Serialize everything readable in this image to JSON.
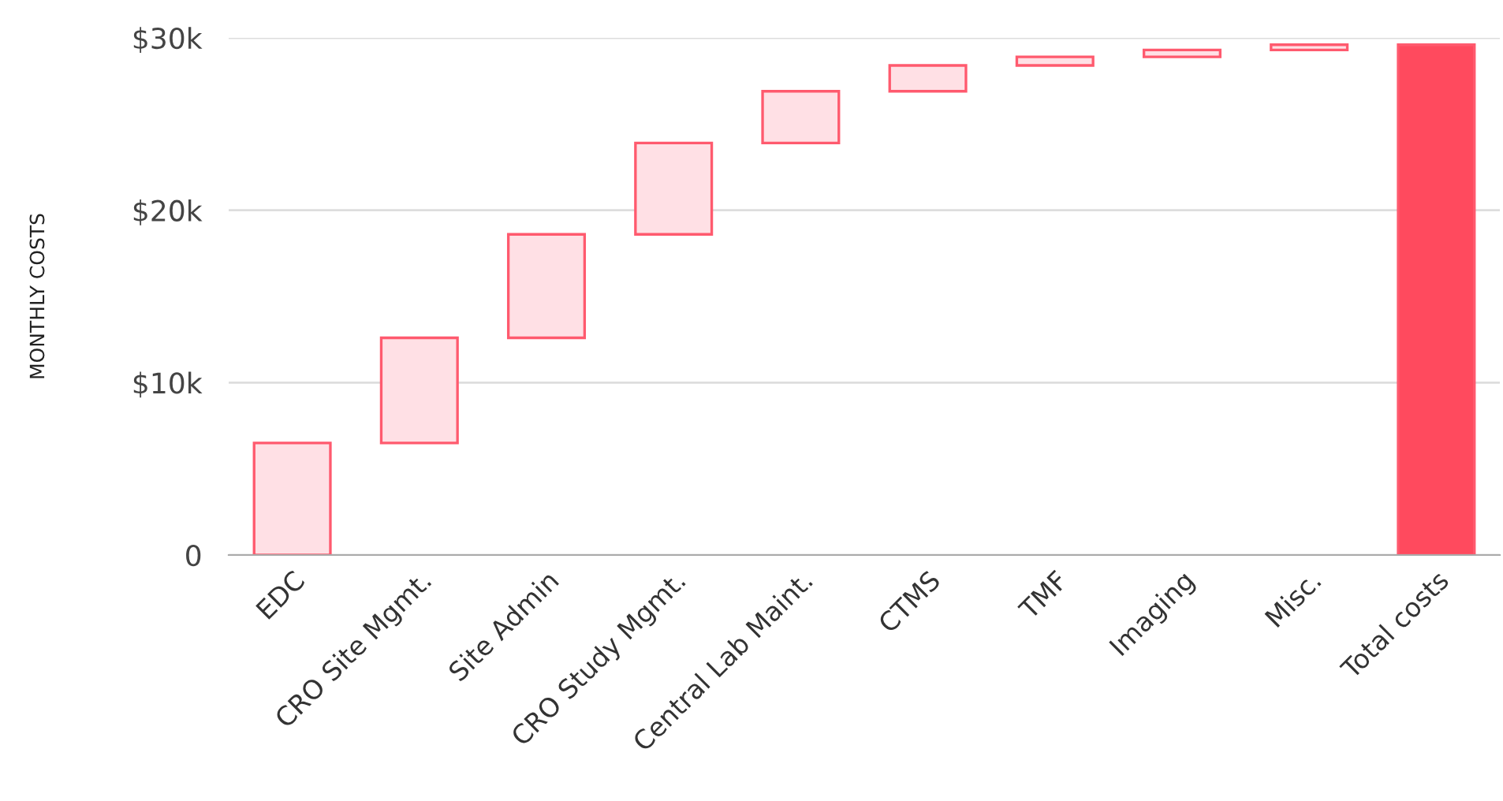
{
  "chart_data": {
    "type": "bar",
    "ylabel": "MONTHLY COSTS",
    "categories": [
      "EDC",
      "CRO Site Mgmt.",
      "Site Admin",
      "CRO Study Mgmt.",
      "Central Lab Maint.",
      "CTMS",
      "TMF",
      "Imaging",
      "Misc.",
      "Total costs"
    ],
    "values": [
      6500,
      6100,
      6000,
      5300,
      3000,
      1500,
      500,
      400,
      300,
      29600
    ],
    "base": [
      0,
      6500,
      12600,
      18600,
      23900,
      26900,
      28400,
      28900,
      29300,
      0
    ],
    "colors": [
      "#ffe0e5",
      "#ffe0e5",
      "#ffe0e5",
      "#ffe0e5",
      "#ffe0e5",
      "#ffe0e5",
      "#ffe0e5",
      "#ffe0e5",
      "#ffe0e5",
      "#ff4a5e"
    ],
    "ylim": [
      0,
      30000
    ],
    "yticks": [
      {
        "value": 0,
        "label": "0"
      },
      {
        "value": 10000,
        "label": "$10k"
      },
      {
        "value": 20000,
        "label": "$20k"
      },
      {
        "value": 30000,
        "label": "$30k"
      }
    ],
    "grid": "y",
    "legend": false
  }
}
